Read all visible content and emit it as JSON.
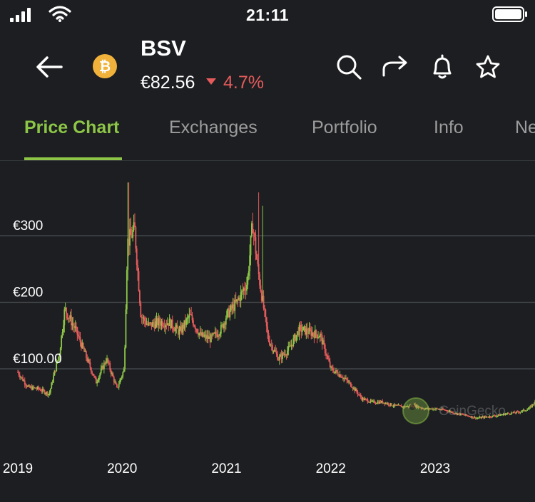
{
  "status_bar": {
    "time": "21:11"
  },
  "header": {
    "symbol": "BSV",
    "price": "€82.56",
    "change": "4.7%",
    "change_direction": "down",
    "logo_glyph": "₿",
    "icons": [
      "back-arrow-icon",
      "search-icon",
      "share-icon",
      "bell-icon",
      "star-icon"
    ]
  },
  "tabs": [
    {
      "label": "Price Chart",
      "active": true
    },
    {
      "label": "Exchanges",
      "active": false
    },
    {
      "label": "Portfolio",
      "active": false
    },
    {
      "label": "Info",
      "active": false
    },
    {
      "label": "Ne",
      "active": false
    }
  ],
  "colors": {
    "background": "#1c1e21",
    "accent": "#8dc647",
    "up": "#8dc647",
    "down": "#e55b5b",
    "muted": "#9c9c9c",
    "coin": "#f0b23a"
  },
  "watermark": "CoinGecko",
  "chart_data": {
    "type": "candlestick",
    "y_ticks": [
      {
        "value": 100,
        "label": "€100.00"
      },
      {
        "value": 200,
        "label": "€200"
      },
      {
        "value": 300,
        "label": "€300"
      }
    ],
    "x_ticks": [
      {
        "value": 2019.0,
        "label": "2019"
      },
      {
        "value": 2020.0,
        "label": "2020"
      },
      {
        "value": 2021.0,
        "label": "2021"
      },
      {
        "value": 2022.0,
        "label": "2022"
      },
      {
        "value": 2023.0,
        "label": "2023"
      }
    ],
    "x_range": [
      2019.0,
      2024.0
    ],
    "y_range": [
      0,
      400
    ],
    "grid": true,
    "price_path": [
      [
        2019.0,
        95
      ],
      [
        2019.1,
        72
      ],
      [
        2019.2,
        70
      ],
      [
        2019.3,
        62
      ],
      [
        2019.4,
        125
      ],
      [
        2019.45,
        190
      ],
      [
        2019.55,
        160
      ],
      [
        2019.65,
        120
      ],
      [
        2019.75,
        80
      ],
      [
        2019.85,
        115
      ],
      [
        2019.95,
        70
      ],
      [
        2020.02,
        100
      ],
      [
        2020.05,
        290
      ],
      [
        2020.12,
        310
      ],
      [
        2020.18,
        180
      ],
      [
        2020.25,
        165
      ],
      [
        2020.35,
        170
      ],
      [
        2020.45,
        170
      ],
      [
        2020.55,
        155
      ],
      [
        2020.65,
        180
      ],
      [
        2020.75,
        150
      ],
      [
        2020.85,
        145
      ],
      [
        2020.95,
        160
      ],
      [
        2021.0,
        180
      ],
      [
        2021.1,
        200
      ],
      [
        2021.2,
        230
      ],
      [
        2021.25,
        320
      ],
      [
        2021.3,
        250
      ],
      [
        2021.4,
        145
      ],
      [
        2021.5,
        115
      ],
      [
        2021.6,
        130
      ],
      [
        2021.7,
        160
      ],
      [
        2021.8,
        155
      ],
      [
        2021.9,
        150
      ],
      [
        2022.0,
        100
      ],
      [
        2022.1,
        90
      ],
      [
        2022.2,
        75
      ],
      [
        2022.3,
        55
      ],
      [
        2022.4,
        50
      ],
      [
        2022.5,
        50
      ],
      [
        2022.6,
        45
      ],
      [
        2022.7,
        43
      ],
      [
        2022.8,
        45
      ],
      [
        2022.9,
        40
      ],
      [
        2023.0,
        40
      ],
      [
        2023.1,
        38
      ],
      [
        2023.2,
        33
      ],
      [
        2023.3,
        30
      ],
      [
        2023.4,
        26
      ],
      [
        2023.5,
        28
      ],
      [
        2023.6,
        30
      ],
      [
        2023.7,
        33
      ],
      [
        2023.8,
        35
      ],
      [
        2023.9,
        40
      ],
      [
        2023.98,
        55
      ]
    ],
    "spikes": [
      {
        "x": 2020.06,
        "high": 380
      },
      {
        "x": 2021.31,
        "high": 365
      },
      {
        "x": 2021.35,
        "high": 345
      }
    ]
  }
}
